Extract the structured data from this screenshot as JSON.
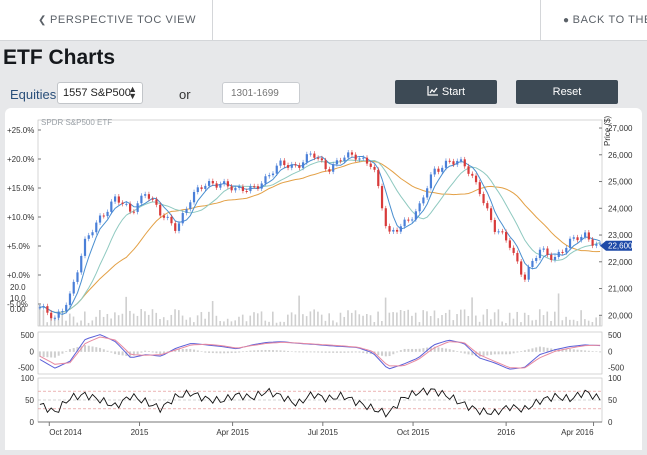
{
  "nav": {
    "toc_label": "PERSPECTIVE TOC VIEW",
    "back_label": "BACK TO THE C"
  },
  "page": {
    "title": "ETF Charts"
  },
  "controls": {
    "equities_label": "Equities",
    "equity_selected": "1557 S&P500",
    "or_label": "or",
    "range_placeholder": "1301-1699",
    "start_label": "Start",
    "reset_label": "Reset"
  },
  "colors": {
    "button_bg": "#3d4a55",
    "candle_up": "#4a7fd8",
    "candle_down": "#d83a3a",
    "ma_short": "#4a8fd0",
    "ma_mid": "#8fc9c0",
    "ma_long": "#e3a045",
    "price_badge": "#1e4aa8"
  },
  "icons": {
    "toc": "arrow-left-icon",
    "back": "arrow-circle-up-icon",
    "start": "line-chart-icon",
    "select": "up-down-caret-icon"
  },
  "chart_data": [
    {
      "type": "line",
      "title": "SPDR S&P500 ETF",
      "ylabel": "Price ($)",
      "x_ticks": [
        "Oct 2014",
        "2015",
        "Apr 2015",
        "Jul 2015",
        "Oct 2015",
        "2016",
        "Apr 2016"
      ],
      "left_ticks": [
        "+25.0%",
        "+20.0%",
        "+15.0%",
        "+10.0%",
        "+5.0%",
        "+0.0%",
        "-5.0%"
      ],
      "right_ticks": [
        "27,000",
        "26,000",
        "25,000",
        "24,000",
        "23,000",
        "22,000",
        "21,000",
        "20,000"
      ],
      "volume_ticks": [
        "20.0",
        "10.0",
        "0.00"
      ],
      "ylim": [
        19600,
        27300
      ],
      "current_price_label": "22,600",
      "current_price": 22600,
      "series": [
        {
          "values": [
            20300,
            19800,
            20800,
            22700,
            23700,
            24400,
            23800,
            24700,
            23700,
            23300,
            24400,
            24900,
            25000,
            24600,
            24800,
            25100,
            25700,
            25600,
            26000,
            25500,
            25900,
            25900,
            25700,
            22900,
            23500,
            23900,
            25400,
            25800,
            25600,
            24800,
            23200,
            22700,
            21400,
            22400,
            22200,
            22700,
            23000,
            22600
          ]
        }
      ]
    },
    {
      "type": "line",
      "y_ticks_left": [
        "500",
        "0",
        "-500"
      ],
      "y_ticks_right": [
        "500",
        "0",
        "-500"
      ],
      "ylim": [
        -700,
        600
      ],
      "series": [
        {
          "values": [
            -250,
            -520,
            -300,
            380,
            520,
            300,
            -200,
            -100,
            -150,
            100,
            250,
            200,
            150,
            80,
            200,
            280,
            300,
            250,
            220,
            180,
            150,
            120,
            -50,
            -550,
            -400,
            -200,
            200,
            350,
            250,
            -200,
            -350,
            -550,
            -500,
            -100,
            50,
            150,
            200,
            180
          ]
        },
        {
          "values": [
            -150,
            -400,
            -350,
            250,
            450,
            350,
            -100,
            -120,
            -100,
            50,
            200,
            220,
            180,
            100,
            180,
            250,
            280,
            260,
            230,
            200,
            170,
            130,
            0,
            -450,
            -450,
            -250,
            100,
            300,
            280,
            -100,
            -300,
            -500,
            -520,
            -200,
            0,
            100,
            180,
            190
          ]
        }
      ]
    },
    {
      "type": "line",
      "y_ticks_left": [
        "100",
        "50",
        "0"
      ],
      "y_ticks_right": [
        "100",
        "50",
        "0"
      ],
      "ylim": [
        0,
        100
      ],
      "series": [
        {
          "values": [
            40,
            22,
            55,
            62,
            50,
            35,
            60,
            45,
            30,
            58,
            66,
            52,
            48,
            62,
            55,
            70,
            58,
            40,
            64,
            52,
            60,
            44,
            30,
            18,
            55,
            68,
            72,
            58,
            40,
            25,
            20,
            35,
            28,
            48,
            58,
            52,
            68,
            52
          ]
        }
      ]
    }
  ]
}
